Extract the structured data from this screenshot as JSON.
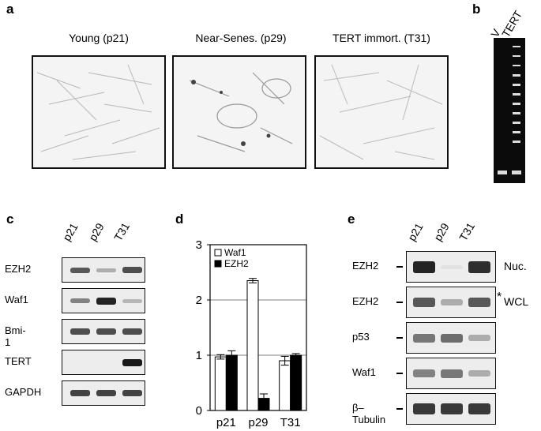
{
  "panel_a": {
    "label": "a",
    "images": [
      {
        "caption": "Young (p21)"
      },
      {
        "caption": "Near-Senes. (p29)"
      },
      {
        "caption": "TERT immort. (T31)"
      }
    ]
  },
  "panel_b": {
    "label": "b",
    "lanes": [
      "V",
      "TERT"
    ]
  },
  "panel_c": {
    "label": "c",
    "lanes": [
      "p21",
      "p29",
      "T31"
    ],
    "rows": [
      {
        "label": "EZH2",
        "intensity": [
          0.7,
          0.3,
          0.75
        ]
      },
      {
        "label": "Waf1",
        "intensity": [
          0.5,
          0.95,
          0.25
        ]
      },
      {
        "label": "Bmi-1",
        "intensity": [
          0.75,
          0.75,
          0.75
        ]
      },
      {
        "label": "TERT",
        "intensity": [
          0,
          0,
          1
        ]
      },
      {
        "label": "GAPDH",
        "intensity": [
          0.8,
          0.8,
          0.8
        ]
      }
    ]
  },
  "panel_d": {
    "label": "d"
  },
  "panel_e": {
    "label": "e",
    "lanes": [
      "p21",
      "p29",
      "T31"
    ],
    "rows": [
      {
        "label": "EZH2",
        "right": "Nuc.",
        "intensity": [
          0.95,
          0.05,
          0.9
        ]
      },
      {
        "label": "EZH2",
        "right": "WCL",
        "star": "*",
        "intensity": [
          0.7,
          0.3,
          0.7
        ]
      },
      {
        "label": "p53",
        "right": "",
        "intensity": [
          0.55,
          0.6,
          0.3
        ]
      },
      {
        "label": "Waf1",
        "right": "",
        "intensity": [
          0.5,
          0.55,
          0.3
        ]
      },
      {
        "label": "β–Tubulin",
        "right": "",
        "intensity": [
          0.85,
          0.85,
          0.85
        ]
      }
    ]
  },
  "chart_data": {
    "type": "bar",
    "categories": [
      "p21",
      "p29",
      "T31"
    ],
    "series": [
      {
        "name": "Waf1",
        "values": [
          0.97,
          2.35,
          0.9
        ],
        "errors": [
          0.04,
          0.04,
          0.08
        ],
        "color": "#ffffff"
      },
      {
        "name": "EZH2",
        "values": [
          1.0,
          0.22,
          1.0
        ],
        "errors": [
          0.08,
          0.08,
          0.03
        ],
        "color": "#000000"
      }
    ],
    "ylim": [
      0,
      3
    ],
    "yticks": [
      0,
      1,
      2,
      3
    ],
    "gridlines": [
      1,
      2
    ],
    "legend": "top-left"
  }
}
